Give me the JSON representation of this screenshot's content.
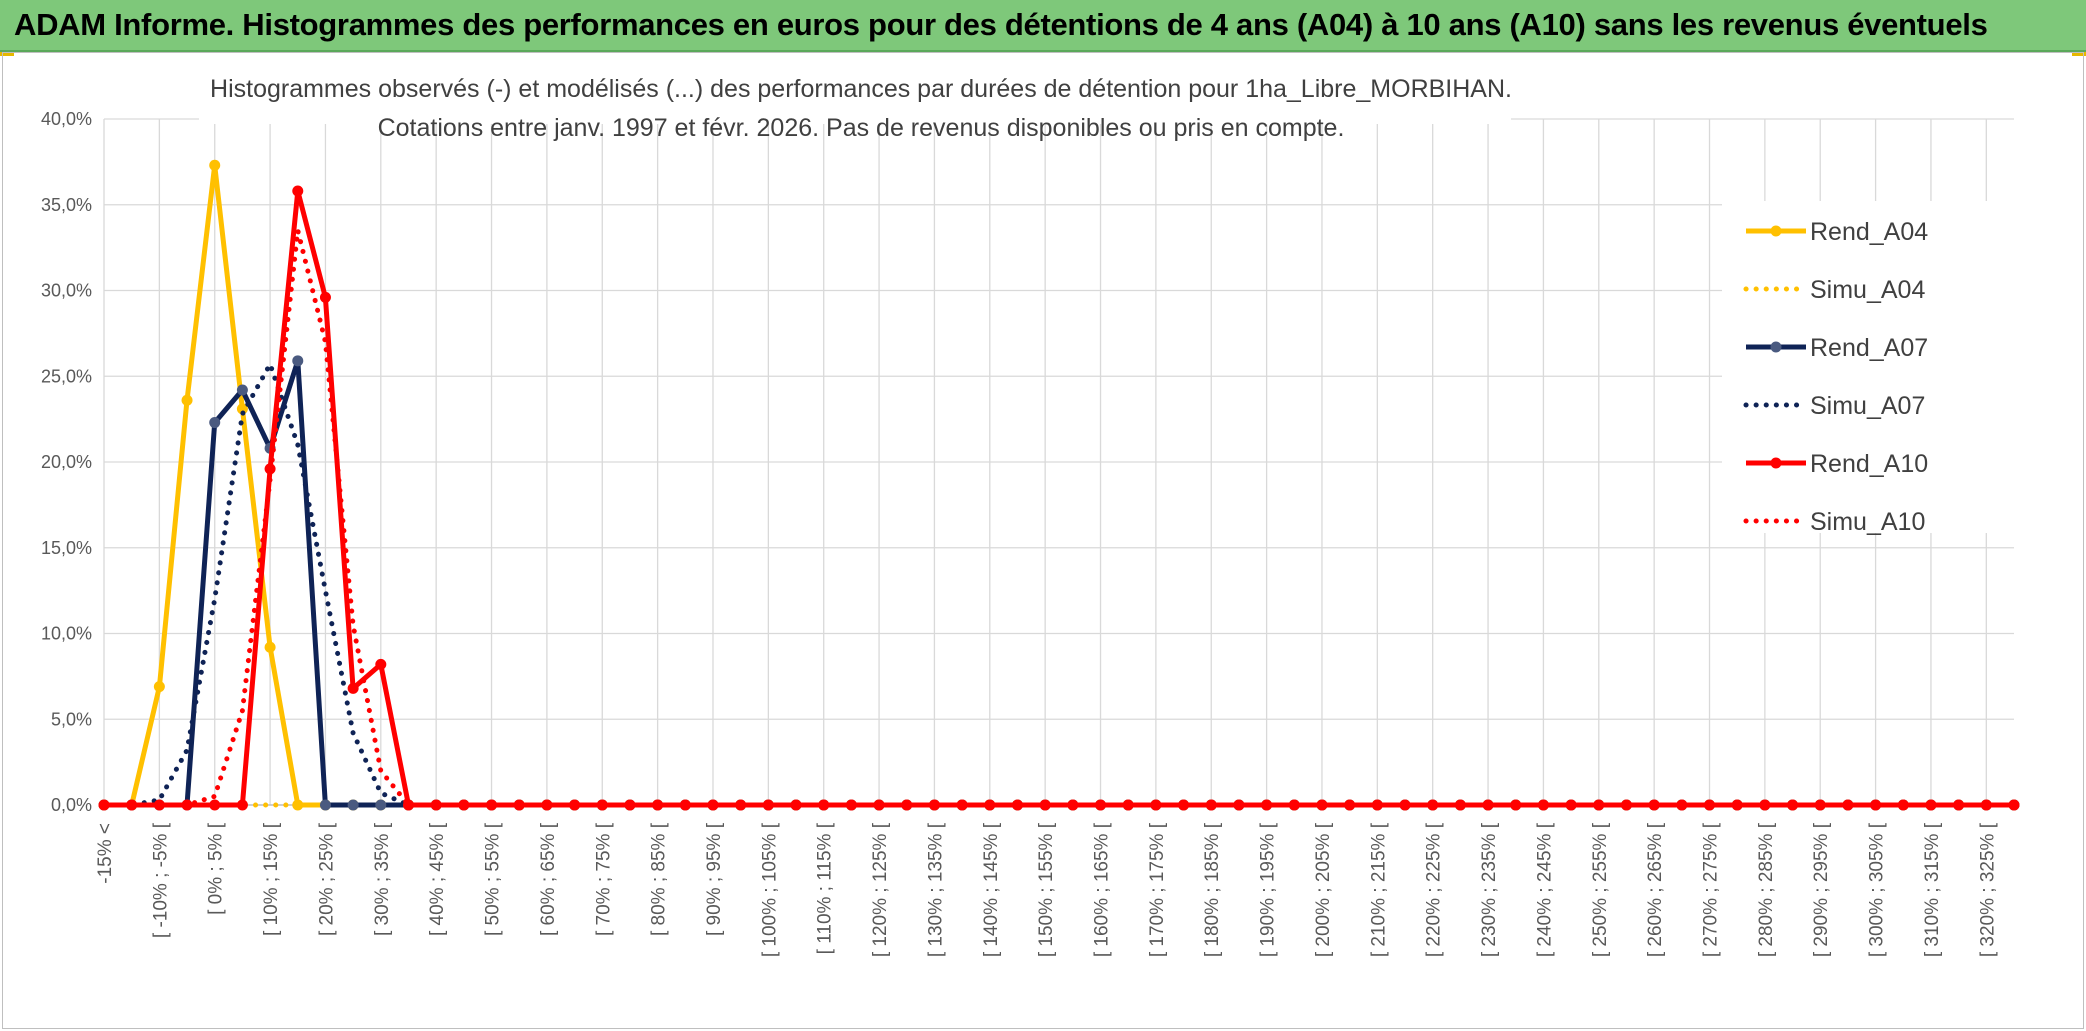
{
  "banner": {
    "title": "ADAM Informe. Histogrammes des performances en euros pour des détentions de 4 ans (A04) à 10 ans (A10) sans les revenus éventuels"
  },
  "colors": {
    "banner_bg": "#7ec87a",
    "corner_accent": "#e6b800",
    "A04": "#ffc000",
    "A07": "#0f2356",
    "A10": "#ff0000",
    "grid": "#d9d9d9"
  },
  "chart_data": {
    "type": "line",
    "title": [
      "Histogrammes observés (-) et modélisés (...) des performances par durées de détention pour 1ha_Libre_MORBIHAN.",
      "Cotations entre janv. 1997 et févr. 2026. Pas de revenus disponibles ou pris en compte."
    ],
    "xlabel": "",
    "ylabel": "",
    "ylim": [
      0,
      40
    ],
    "y_ticks": [
      "0,0%",
      "5,0%",
      "10,0%",
      "15,0%",
      "20,0%",
      "25,0%",
      "30,0%",
      "35,0%",
      "40,0%"
    ],
    "y_tick_values": [
      0,
      5,
      10,
      15,
      20,
      25,
      30,
      35,
      40
    ],
    "grid": true,
    "legend_position": "right",
    "x_tick_labels": [
      "-15% <",
      "[ -10% ; -5% [",
      "[ 0% ; 5% [",
      "[ 10% ; 15% [",
      "[ 20% ; 25% [",
      "[ 30% ; 35% [",
      "[ 40% ; 45% [",
      "[ 50% ; 55% [",
      "[ 60% ; 65% [",
      "[ 70% ; 75% [",
      "[ 80% ; 85% [",
      "[ 90% ; 95% [",
      "[ 100% ; 105% [",
      "[ 110% ; 115% [",
      "[ 120% ; 125% [",
      "[ 130% ; 135% [",
      "[ 140% ; 145% [",
      "[ 150% ; 155% [",
      "[ 160% ; 165% [",
      "[ 170% ; 175% [",
      "[ 180% ; 185% [",
      "[ 190% ; 195% [",
      "[ 200% ; 205% [",
      "[ 210% ; 215% [",
      "[ 220% ; 225% [",
      "[ 230% ; 235% [",
      "[ 240% ; 245% [",
      "[ 250% ; 255% [",
      "[ 260% ; 265% [",
      "[ 270% ; 275% [",
      "[ 280% ; 285% [",
      "[ 290% ; 295% [",
      "[ 300% ; 305% [",
      "[ 310% ; 315% [",
      "[ 320% ; 325% ["
    ],
    "num_points": 70,
    "series": [
      {
        "name": "Rend_A04",
        "style": "solid",
        "color": "#ffc000",
        "values": [
          0,
          0,
          6.9,
          23.6,
          37.3,
          23.1,
          9.2,
          0,
          0
        ]
      },
      {
        "name": "Simu_A04",
        "style": "dotted",
        "color": "#ffc000",
        "values": [
          0,
          0,
          0,
          0,
          0,
          0,
          0,
          0,
          0
        ]
      },
      {
        "name": "Rend_A07",
        "style": "solid",
        "color": "#0f2356",
        "values": [
          0,
          0,
          0,
          0,
          22.3,
          24.2,
          20.8,
          25.9,
          0,
          0,
          0
        ]
      },
      {
        "name": "Simu_A07",
        "style": "dotted",
        "color": "#0f2356",
        "values": [
          0,
          0,
          0.3,
          3.2,
          12.0,
          22.8,
          25.7,
          21.0,
          12.5,
          4.2,
          0.7,
          0,
          0
        ]
      },
      {
        "name": "Rend_A10",
        "style": "solid",
        "color": "#ff0000",
        "values": [
          0,
          0,
          0,
          0,
          0,
          0,
          19.6,
          35.8,
          29.6,
          6.8,
          8.2,
          0,
          0
        ]
      },
      {
        "name": "Simu_A10",
        "style": "dotted",
        "color": "#ff0000",
        "values": [
          0,
          0,
          0,
          0,
          0.5,
          5.5,
          19.0,
          33.5,
          27.0,
          10.5,
          2.0,
          0,
          0
        ]
      }
    ]
  }
}
